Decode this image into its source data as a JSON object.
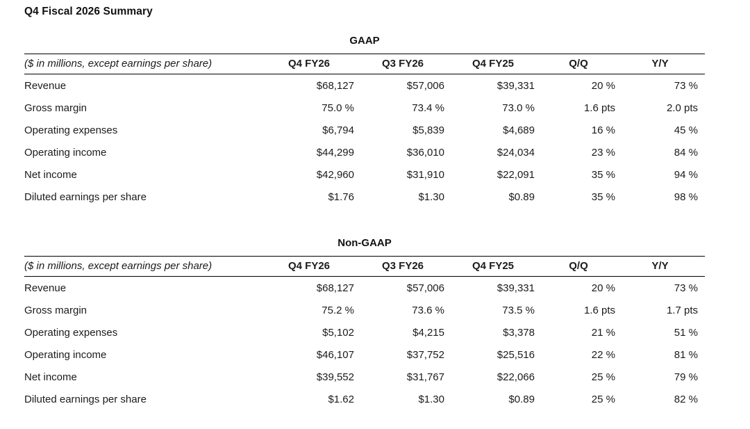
{
  "page_title": "Q4 Fiscal 2026 Summary",
  "colors": {
    "text": "#1b1b1b",
    "rule": "#000000",
    "background": "#ffffff"
  },
  "tables": [
    {
      "title": "GAAP",
      "columns": [
        "($ in millions, except earnings per share)",
        "Q4 FY26",
        "Q3 FY26",
        "Q4 FY25",
        "Q/Q",
        "Y/Y"
      ],
      "rows": [
        [
          "Revenue",
          "$68,127",
          "$57,006",
          "$39,331",
          "20 %",
          "73 %"
        ],
        [
          "Gross margin",
          "75.0 %",
          "73.4 %",
          "73.0 %",
          "1.6 pts",
          "2.0 pts"
        ],
        [
          "Operating expenses",
          "$6,794",
          "$5,839",
          "$4,689",
          "16 %",
          "45 %"
        ],
        [
          "Operating income",
          "$44,299",
          "$36,010",
          "$24,034",
          "23 %",
          "84 %"
        ],
        [
          "Net income",
          "$42,960",
          "$31,910",
          "$22,091",
          "35 %",
          "94 %"
        ],
        [
          "Diluted earnings per share",
          "$1.76",
          "$1.30",
          "$0.89",
          "35 %",
          "98 %"
        ]
      ]
    },
    {
      "title": "Non-GAAP",
      "columns": [
        "($ in millions, except earnings per share)",
        "Q4 FY26",
        "Q3 FY26",
        "Q4 FY25",
        "Q/Q",
        "Y/Y"
      ],
      "rows": [
        [
          "Revenue",
          "$68,127",
          "$57,006",
          "$39,331",
          "20 %",
          "73 %"
        ],
        [
          "Gross margin",
          "75.2 %",
          "73.6 %",
          "73.5 %",
          "1.6 pts",
          "1.7 pts"
        ],
        [
          "Operating expenses",
          "$5,102",
          "$4,215",
          "$3,378",
          "21 %",
          "51 %"
        ],
        [
          "Operating income",
          "$46,107",
          "$37,752",
          "$25,516",
          "22 %",
          "81 %"
        ],
        [
          "Net income",
          "$39,552",
          "$31,767",
          "$22,066",
          "25 %",
          "79 %"
        ],
        [
          "Diluted earnings per share",
          "$1.62",
          "$1.30",
          "$0.89",
          "25 %",
          "82 %"
        ]
      ]
    }
  ]
}
